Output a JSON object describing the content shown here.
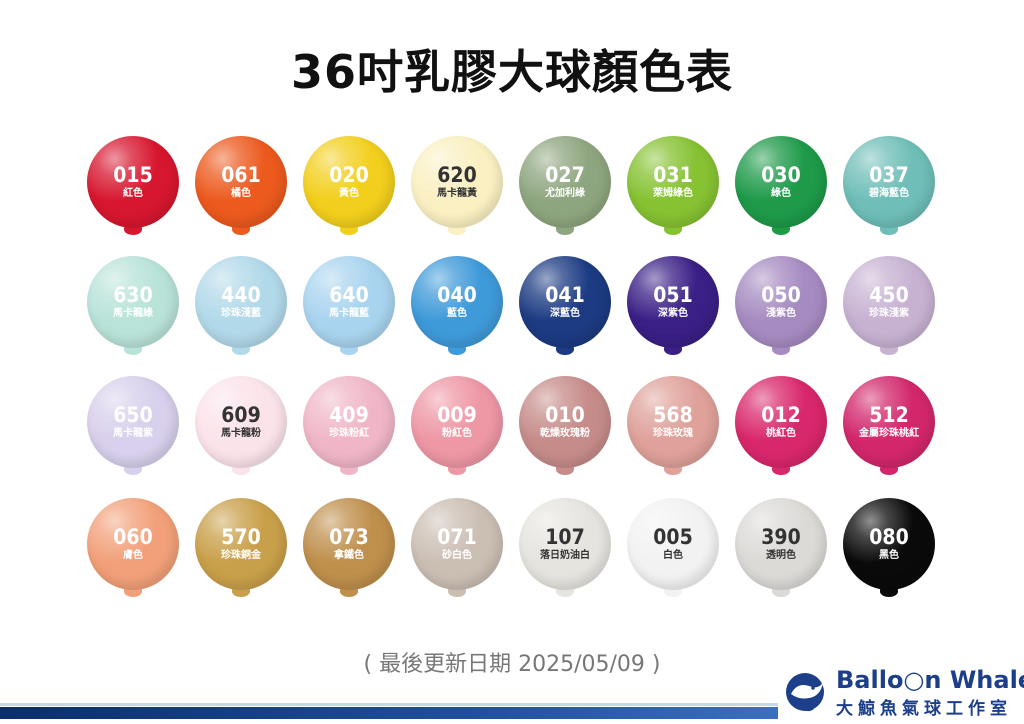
{
  "title": "36吋乳膠大球顏色表",
  "balloons": [
    {
      "code": "015",
      "name": "紅色",
      "color": "#d7172f",
      "text": "light"
    },
    {
      "code": "061",
      "name": "橘色",
      "color": "#ec5a1e",
      "text": "light"
    },
    {
      "code": "020",
      "name": "黃色",
      "color": "#f2cf1c",
      "text": "light"
    },
    {
      "code": "620",
      "name": "馬卡龍黃",
      "color": "#faf0c2",
      "text": "dark"
    },
    {
      "code": "027",
      "name": "尤加利綠",
      "color": "#8ea67f",
      "text": "light"
    },
    {
      "code": "031",
      "name": "萊姆綠色",
      "color": "#86c232",
      "text": "light"
    },
    {
      "code": "030",
      "name": "綠色",
      "color": "#1e9a49",
      "text": "light"
    },
    {
      "code": "037",
      "name": "碧海藍色",
      "color": "#6fbeb8",
      "text": "light"
    },
    {
      "code": "630",
      "name": "馬卡龍綠",
      "color": "#b9e3d9",
      "text": "light"
    },
    {
      "code": "440",
      "name": "珍珠淺藍",
      "color": "#b2d9ea",
      "text": "light"
    },
    {
      "code": "640",
      "name": "馬卡龍藍",
      "color": "#a9d4ef",
      "text": "light"
    },
    {
      "code": "040",
      "name": "藍色",
      "color": "#3f9ad9",
      "text": "light"
    },
    {
      "code": "041",
      "name": "深藍色",
      "color": "#1c3b83",
      "text": "light"
    },
    {
      "code": "051",
      "name": "深紫色",
      "color": "#3a1f86",
      "text": "light"
    },
    {
      "code": "050",
      "name": "淺紫色",
      "color": "#a68bc1",
      "text": "light"
    },
    {
      "code": "450",
      "name": "珍珠淺紫",
      "color": "#c7b2d2",
      "text": "light"
    },
    {
      "code": "650",
      "name": "馬卡龍紫",
      "color": "#d8d0ec",
      "text": "light"
    },
    {
      "code": "609",
      "name": "馬卡龍粉",
      "color": "#fbe3ea",
      "text": "dark"
    },
    {
      "code": "409",
      "name": "珍珠粉紅",
      "color": "#f0b6c7",
      "text": "light"
    },
    {
      "code": "009",
      "name": "粉紅色",
      "color": "#ee97a5",
      "text": "light"
    },
    {
      "code": "010",
      "name": "乾燥玫瑰粉",
      "color": "#c68c8a",
      "text": "light"
    },
    {
      "code": "568",
      "name": "珍珠玫瑰",
      "color": "#dfa19a",
      "text": "light"
    },
    {
      "code": "012",
      "name": "桃紅色",
      "color": "#d9276b",
      "text": "light"
    },
    {
      "code": "512",
      "name": "金屬珍珠桃紅",
      "color": "#d2276b",
      "text": "light"
    },
    {
      "code": "060",
      "name": "膚色",
      "color": "#f2a079",
      "text": "light"
    },
    {
      "code": "570",
      "name": "珍珠銅金",
      "color": "#c9a04a",
      "text": "light"
    },
    {
      "code": "073",
      "name": "拿鐵色",
      "color": "#bf8f4c",
      "text": "light"
    },
    {
      "code": "071",
      "name": "砂白色",
      "color": "#cbbfb4",
      "text": "light"
    },
    {
      "code": "107",
      "name": "落日奶油白",
      "color": "#e6e4df",
      "text": "dark"
    },
    {
      "code": "005",
      "name": "白色",
      "color": "#f2f2f2",
      "text": "dark"
    },
    {
      "code": "390",
      "name": "透明色",
      "color": "#dcdad7",
      "text": "dark"
    },
    {
      "code": "080",
      "name": "黑色",
      "color": "#0a0a0a",
      "text": "light"
    }
  ],
  "updated": "( 最後更新日期 2025/05/09 )",
  "brand": {
    "name": "Ballo○n Whale",
    "name_cn": "大鯨魚氣球工作室",
    "colors": {
      "primary": "#1d3f8a",
      "accent": "#3a6fc2"
    }
  }
}
